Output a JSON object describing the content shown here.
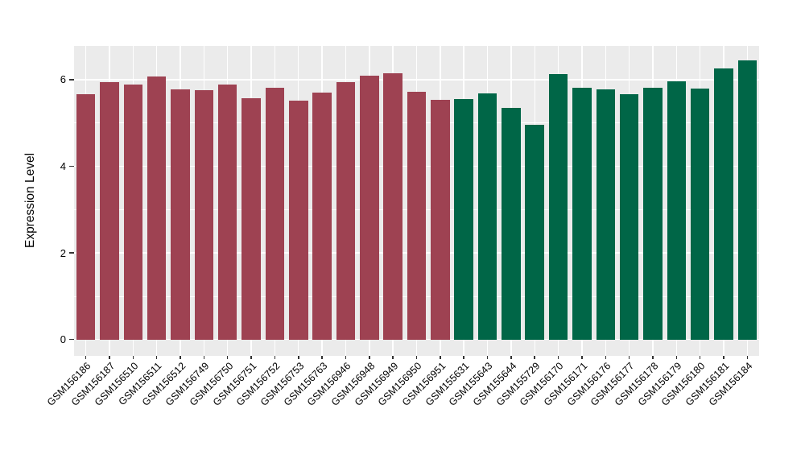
{
  "chart_data": {
    "type": "bar",
    "title": "",
    "xlabel": "",
    "ylabel": "Expression Level",
    "yticks": [
      0,
      2,
      4,
      6
    ],
    "ylim": [
      0,
      6.8
    ],
    "grid": "horizontal major at ticks, horizontal minor between ticks, vertical major at each category",
    "legend_position": "none",
    "bars": [
      {
        "label": "GSM156186",
        "value": 5.67,
        "group": "maroon"
      },
      {
        "label": "GSM156187",
        "value": 5.95,
        "group": "maroon"
      },
      {
        "label": "GSM156510",
        "value": 5.89,
        "group": "maroon"
      },
      {
        "label": "GSM156511",
        "value": 6.08,
        "group": "maroon"
      },
      {
        "label": "GSM156512",
        "value": 5.77,
        "group": "maroon"
      },
      {
        "label": "GSM156749",
        "value": 5.76,
        "group": "maroon"
      },
      {
        "label": "GSM156750",
        "value": 5.89,
        "group": "maroon"
      },
      {
        "label": "GSM156751",
        "value": 5.57,
        "group": "maroon"
      },
      {
        "label": "GSM156752",
        "value": 5.82,
        "group": "maroon"
      },
      {
        "label": "GSM156753",
        "value": 5.51,
        "group": "maroon"
      },
      {
        "label": "GSM156763",
        "value": 5.7,
        "group": "maroon"
      },
      {
        "label": "GSM156946",
        "value": 5.95,
        "group": "maroon"
      },
      {
        "label": "GSM156948",
        "value": 6.1,
        "group": "maroon"
      },
      {
        "label": "GSM156949",
        "value": 6.14,
        "group": "maroon"
      },
      {
        "label": "GSM156950",
        "value": 5.72,
        "group": "maroon"
      },
      {
        "label": "GSM156951",
        "value": 5.54,
        "group": "maroon"
      },
      {
        "label": "GSM155631",
        "value": 5.56,
        "group": "green"
      },
      {
        "label": "GSM155643",
        "value": 5.68,
        "group": "green"
      },
      {
        "label": "GSM155644",
        "value": 5.35,
        "group": "green"
      },
      {
        "label": "GSM155729",
        "value": 4.95,
        "group": "green"
      },
      {
        "label": "GSM156170",
        "value": 6.12,
        "group": "green"
      },
      {
        "label": "GSM156171",
        "value": 5.81,
        "group": "green"
      },
      {
        "label": "GSM156176",
        "value": 5.77,
        "group": "green"
      },
      {
        "label": "GSM156177",
        "value": 5.66,
        "group": "green"
      },
      {
        "label": "GSM156178",
        "value": 5.81,
        "group": "green"
      },
      {
        "label": "GSM156179",
        "value": 5.97,
        "group": "green"
      },
      {
        "label": "GSM156180",
        "value": 5.8,
        "group": "green"
      },
      {
        "label": "GSM156181",
        "value": 6.25,
        "group": "green"
      },
      {
        "label": "GSM156184",
        "value": 6.44,
        "group": "green"
      }
    ]
  },
  "colors": {
    "maroon": "#9E4252",
    "green": "#006647",
    "panel_bg": "#EBEBEB",
    "gridline": "#FFFFFF",
    "axis_text": "#000000",
    "tick_mark": "#333333",
    "page_bg": "#FFFFFF"
  }
}
